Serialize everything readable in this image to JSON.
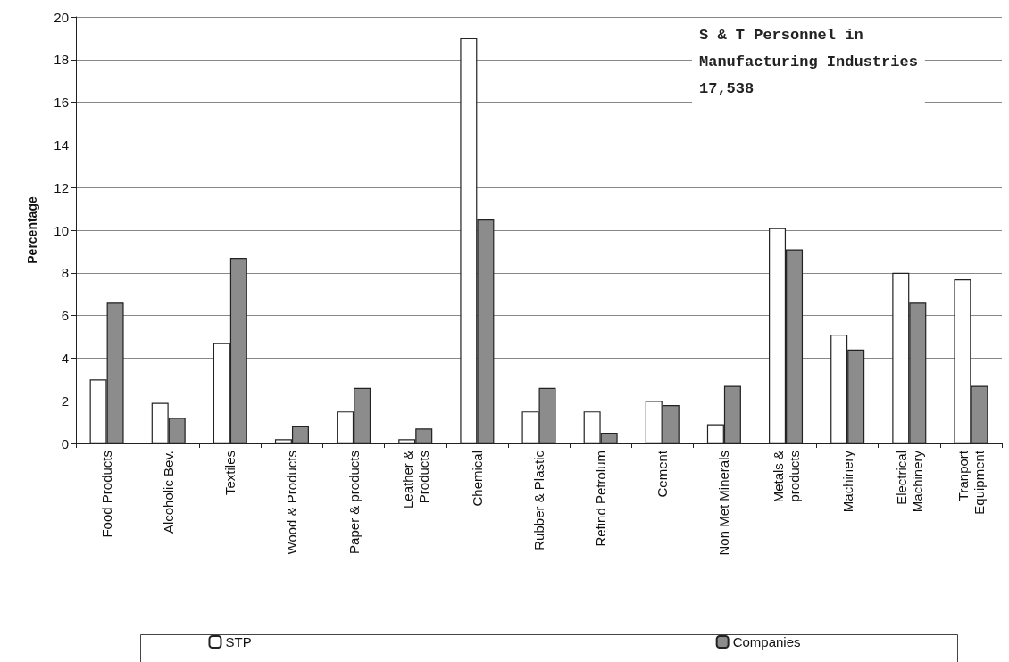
{
  "chart_data": {
    "type": "bar",
    "ylabel": "Percentage",
    "categories": [
      "Food Products",
      "Alcoholic Bev.",
      "Textiles",
      "Wood & Products",
      "Paper & products",
      "Leather &\nProducts",
      "Chemical",
      "Rubber & Plastic",
      "Refind Petrolum",
      "Cement",
      "Non Met Minerals",
      "Metals &\nproducts",
      "Machinery",
      "Electrical\nMachinery",
      "Tranport\nEquipment"
    ],
    "series": [
      {
        "name": "STP",
        "color": "#ffffff",
        "values": [
          3.0,
          1.9,
          4.7,
          0.2,
          1.5,
          0.2,
          19.0,
          1.5,
          1.5,
          2.0,
          0.9,
          10.1,
          5.1,
          8.0,
          7.7
        ]
      },
      {
        "name": "Companies",
        "color": "#8c8c8c",
        "values": [
          6.6,
          1.2,
          8.7,
          0.8,
          2.6,
          0.7,
          10.5,
          2.6,
          0.5,
          1.8,
          2.7,
          9.1,
          4.4,
          6.6,
          2.7
        ]
      }
    ],
    "ylim": [
      0,
      20
    ],
    "yticks": [
      0,
      2,
      4,
      6,
      8,
      10,
      12,
      14,
      16,
      18,
      20
    ],
    "grid": "y",
    "legend": "bottom",
    "annotations": [
      "S & T Personnel in\nManufacturing Industries\n17,538"
    ]
  }
}
